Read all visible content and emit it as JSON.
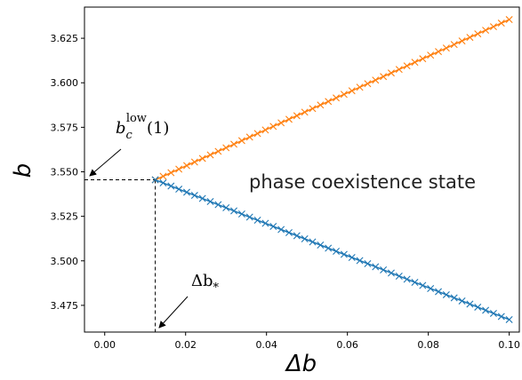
{
  "chart_data": {
    "type": "line",
    "title": "",
    "xlabel": "Δb",
    "ylabel": "b",
    "xlim": [
      -0.005,
      0.1025
    ],
    "ylim": [
      3.46,
      3.6425
    ],
    "xticks": [
      0.0,
      0.02,
      0.04,
      0.06,
      0.08,
      0.1
    ],
    "xtick_labels": [
      "0.00",
      "0.02",
      "0.04",
      "0.06",
      "0.08",
      "0.10"
    ],
    "yticks": [
      3.475,
      3.5,
      3.525,
      3.55,
      3.575,
      3.6,
      3.625
    ],
    "ytick_labels": [
      "3.475",
      "3.500",
      "3.525",
      "3.550",
      "3.575",
      "3.600",
      "3.625"
    ],
    "grid": false,
    "marker": "x",
    "x_range": [
      0.0125,
      0.1
    ],
    "point_count": 46,
    "series": [
      {
        "color": "#ff7f0e",
        "y_start": 3.5455,
        "y_end": 3.6355
      },
      {
        "color": "#1f77b4",
        "y_start": 3.5455,
        "y_end": 3.467
      }
    ],
    "annotations": {
      "b_low_base": "b",
      "b_low_sub": "c",
      "b_low_sup": "low",
      "b_low_arg": "(1)",
      "b_low_value": 3.5455,
      "delta_b_star_base": "Δb",
      "delta_b_star_sub": "*",
      "delta_b_star_value": 0.0125,
      "region_text": "phase coexistence state"
    }
  }
}
